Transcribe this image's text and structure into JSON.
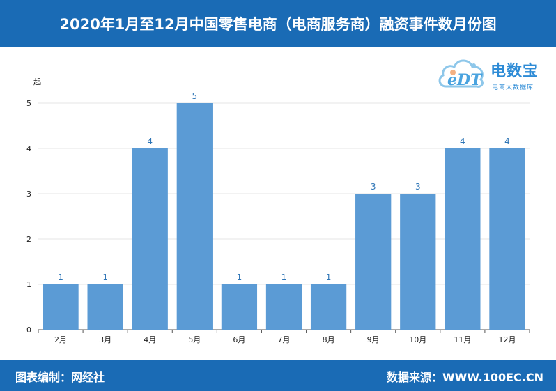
{
  "header": {
    "title": "2020年1月至12月中国零售电商（电商服务商）融资事件数月份图"
  },
  "footer": {
    "left": "图表编制：网经社",
    "right": "数据来源：WWW.100EC.CN"
  },
  "logo": {
    "text": "电数宝",
    "subtitle": "电商大数据库",
    "mark": "eDT"
  },
  "chart_data": {
    "type": "bar",
    "unit": "起",
    "categories": [
      "2月",
      "3月",
      "4月",
      "5月",
      "6月",
      "7月",
      "8月",
      "9月",
      "10月",
      "11月",
      "12月"
    ],
    "values": [
      1,
      1,
      4,
      5,
      1,
      1,
      1,
      3,
      3,
      4,
      4
    ],
    "yticks": [
      0,
      1,
      2,
      3,
      4,
      5
    ],
    "ylim": [
      0,
      5
    ],
    "grid": true,
    "bar_color": "#5b9bd5",
    "label_color": "#2e75b6"
  }
}
